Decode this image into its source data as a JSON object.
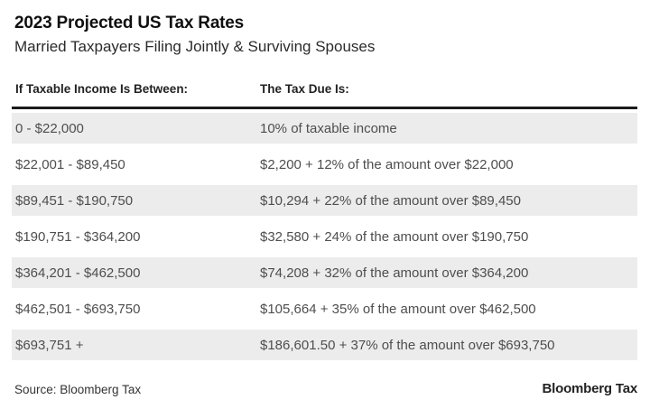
{
  "header": {
    "title": "2023 Projected US Tax Rates",
    "subtitle": "Married Taxpayers Filing Jointly & Surviving Spouses"
  },
  "table": {
    "col1_header": "If Taxable Income Is Between:",
    "col2_header": "The Tax Due Is:",
    "rows": [
      {
        "income": "0 - $22,000",
        "tax": "10% of taxable income"
      },
      {
        "income": "$22,001 - $89,450",
        "tax": "$2,200 + 12% of the amount over $22,000"
      },
      {
        "income": "$89,451 - $190,750",
        "tax": "$10,294 + 22% of the amount over $89,450"
      },
      {
        "income": "$190,751 - $364,200",
        "tax": "$32,580 + 24% of the amount over $190,750"
      },
      {
        "income": "$364,201 - $462,500",
        "tax": "$74,208 + 32% of the amount over $364,200"
      },
      {
        "income": "$462,501 - $693,750",
        "tax": "$105,664 + 35% of the amount over $462,500"
      },
      {
        "income": "$693,751 +",
        "tax": "$186,601.50 + 37% of the amount over $693,750"
      }
    ]
  },
  "footer": {
    "source": "Source: Bloomberg Tax",
    "brand": "Bloomberg Tax"
  },
  "colors": {
    "row_shade": "#ececec",
    "thick_rule": "#1b1b1b",
    "cell_text": "#4e4e4e",
    "heading_text": "#0f0f0f"
  },
  "chart_data": {
    "type": "table",
    "title": "2023 Projected US Tax Rates",
    "subtitle": "Married Taxpayers Filing Jointly & Surviving Spouses",
    "columns": [
      "If Taxable Income Is Between:",
      "The Tax Due Is:"
    ],
    "rows": [
      [
        "0 - $22,000",
        "10% of taxable income"
      ],
      [
        "$22,001 - $89,450",
        "$2,200 + 12% of the amount over $22,000"
      ],
      [
        "$89,451 - $190,750",
        "$10,294 + 22% of the amount over $89,450"
      ],
      [
        "$190,751 - $364,200",
        "$32,580 + 24% of the amount over $190,750"
      ],
      [
        "$364,201 - $462,500",
        "$74,208 + 32% of the amount over $364,200"
      ],
      [
        "$462,501 - $693,750",
        "$105,664 + 35% of the amount over $462,500"
      ],
      [
        "$693,751 +",
        "$186,601.50 + 37% of the amount over $693,750"
      ]
    ],
    "brackets": [
      {
        "min": 0,
        "max": 22000,
        "base_tax": 0,
        "rate_pct": 10,
        "over": 0
      },
      {
        "min": 22001,
        "max": 89450,
        "base_tax": 2200,
        "rate_pct": 12,
        "over": 22000
      },
      {
        "min": 89451,
        "max": 190750,
        "base_tax": 10294,
        "rate_pct": 22,
        "over": 89450
      },
      {
        "min": 190751,
        "max": 364200,
        "base_tax": 32580,
        "rate_pct": 24,
        "over": 190750
      },
      {
        "min": 364201,
        "max": 462500,
        "base_tax": 74208,
        "rate_pct": 32,
        "over": 364200
      },
      {
        "min": 462501,
        "max": 693750,
        "base_tax": 105664,
        "rate_pct": 35,
        "over": 462500
      },
      {
        "min": 693751,
        "max": null,
        "base_tax": 186601.5,
        "rate_pct": 37,
        "over": 693750
      }
    ],
    "source": "Source: Bloomberg Tax",
    "legend_position": "none",
    "grid": false
  }
}
